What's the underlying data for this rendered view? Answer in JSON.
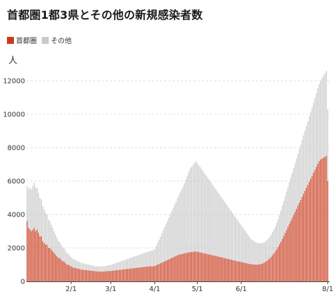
{
  "chart_data": {
    "type": "bar",
    "stacked": true,
    "title": "首都圏1都3県とその他の新規感染者数",
    "ylabel": "人",
    "ylim": [
      0,
      12500
    ],
    "yticks": [
      0,
      2000,
      4000,
      6000,
      8000,
      10000,
      12000
    ],
    "x_range": [
      "2021-01-01",
      "2021-08-02"
    ],
    "xticks": [
      {
        "date": "2021-02-01",
        "label": "2/1"
      },
      {
        "date": "2021-03-01",
        "label": "3/1"
      },
      {
        "date": "2021-04-01",
        "label": "4/1"
      },
      {
        "date": "2021-05-01",
        "label": "5/1"
      },
      {
        "date": "2021-06-01",
        "label": "6/1"
      },
      {
        "date": "2021-08-01",
        "label": "8/1"
      }
    ],
    "grid": "horizontal dashed",
    "legend_position": "top-left",
    "series": [
      {
        "name": "首都圏",
        "color": "#c8391b",
        "values": [
          3600,
          3200,
          3100,
          3000,
          3100,
          3200,
          3000,
          3100,
          2900,
          2700,
          2700,
          2400,
          2300,
          2200,
          2200,
          2000,
          2000,
          1900,
          1800,
          1700,
          1600,
          1500,
          1400,
          1400,
          1300,
          1200,
          1200,
          1100,
          1000,
          1000,
          950,
          900,
          850,
          820,
          800,
          780,
          760,
          740,
          720,
          700,
          690,
          680,
          670,
          660,
          650,
          640,
          630,
          620,
          610,
          600,
          595,
          590,
          590,
          590,
          595,
          600,
          610,
          620,
          620,
          620,
          640,
          650,
          660,
          670,
          680,
          690,
          700,
          710,
          720,
          730,
          740,
          750,
          760,
          770,
          780,
          790,
          800,
          810,
          820,
          830,
          840,
          850,
          860,
          870,
          880,
          890,
          900,
          900,
          900,
          900,
          920,
          960,
          1000,
          1040,
          1080,
          1120,
          1160,
          1200,
          1240,
          1280,
          1320,
          1360,
          1400,
          1440,
          1480,
          1520,
          1560,
          1600,
          1620,
          1640,
          1660,
          1680,
          1700,
          1720,
          1740,
          1750,
          1760,
          1770,
          1780,
          1790,
          1780,
          1760,
          1740,
          1720,
          1700,
          1680,
          1660,
          1640,
          1620,
          1600,
          1580,
          1560,
          1540,
          1520,
          1500,
          1480,
          1460,
          1440,
          1420,
          1400,
          1380,
          1360,
          1340,
          1320,
          1300,
          1280,
          1260,
          1240,
          1220,
          1200,
          1180,
          1160,
          1140,
          1120,
          1100,
          1080,
          1060,
          1040,
          1030,
          1020,
          1010,
          1000,
          1000,
          1010,
          1020,
          1040,
          1070,
          1110,
          1160,
          1220,
          1290,
          1370,
          1460,
          1560,
          1670,
          1790,
          1920,
          2060,
          2210,
          2370,
          2540,
          2720,
          2900,
          3080,
          3260,
          3440,
          3620,
          3800,
          3980,
          4160,
          4340,
          4520,
          4700,
          4880,
          5060,
          5240,
          5420,
          5600,
          5780,
          5960,
          6140,
          6320,
          6500,
          6680,
          6860,
          7040,
          7200,
          7300,
          7350,
          7400,
          7450,
          7500,
          6000
        ]
      },
      {
        "name": "その他",
        "color": "#c9c9c9",
        "values": [
          2100,
          2300,
          2500,
          2500,
          2600,
          2700,
          2600,
          2500,
          2400,
          2300,
          2200,
          2100,
          2000,
          1900,
          1800,
          1700,
          1600,
          1500,
          1400,
          1300,
          1200,
          1100,
          1000,
          950,
          900,
          850,
          800,
          750,
          700,
          650,
          600,
          550,
          520,
          500,
          480,
          460,
          440,
          420,
          400,
          390,
          380,
          370,
          360,
          350,
          340,
          330,
          320,
          310,
          300,
          300,
          300,
          300,
          300,
          300,
          310,
          320,
          330,
          340,
          350,
          360,
          380,
          400,
          420,
          440,
          460,
          480,
          500,
          520,
          540,
          560,
          580,
          600,
          620,
          640,
          660,
          680,
          700,
          720,
          740,
          760,
          780,
          800,
          820,
          840,
          860,
          880,
          900,
          920,
          940,
          960,
          1000,
          1150,
          1300,
          1450,
          1600,
          1750,
          1900,
          2050,
          2200,
          2350,
          2500,
          2650,
          2800,
          2950,
          3100,
          3250,
          3400,
          3550,
          3700,
          3850,
          4000,
          4200,
          4400,
          4600,
          4800,
          5000,
          5100,
          5200,
          5300,
          5400,
          5300,
          5200,
          5100,
          5000,
          4900,
          4800,
          4700,
          4600,
          4500,
          4400,
          4300,
          4200,
          4100,
          4000,
          3900,
          3800,
          3700,
          3600,
          3500,
          3400,
          3300,
          3200,
          3100,
          3000,
          2900,
          2800,
          2700,
          2600,
          2500,
          2400,
          2300,
          2200,
          2100,
          2000,
          1900,
          1800,
          1700,
          1600,
          1500,
          1450,
          1400,
          1350,
          1300,
          1280,
          1260,
          1240,
          1230,
          1220,
          1220,
          1230,
          1250,
          1280,
          1320,
          1370,
          1430,
          1500,
          1580,
          1670,
          1770,
          1880,
          2000,
          2100,
          2200,
          2300,
          2400,
          2500,
          2600,
          2700,
          2800,
          2900,
          3000,
          3100,
          3200,
          3300,
          3400,
          3500,
          3600,
          3700,
          3800,
          3900,
          4000,
          4100,
          4200,
          4300,
          4400,
          4500,
          4600,
          4700,
          4800,
          4900,
          5000,
          5100,
          4300
        ]
      }
    ]
  }
}
